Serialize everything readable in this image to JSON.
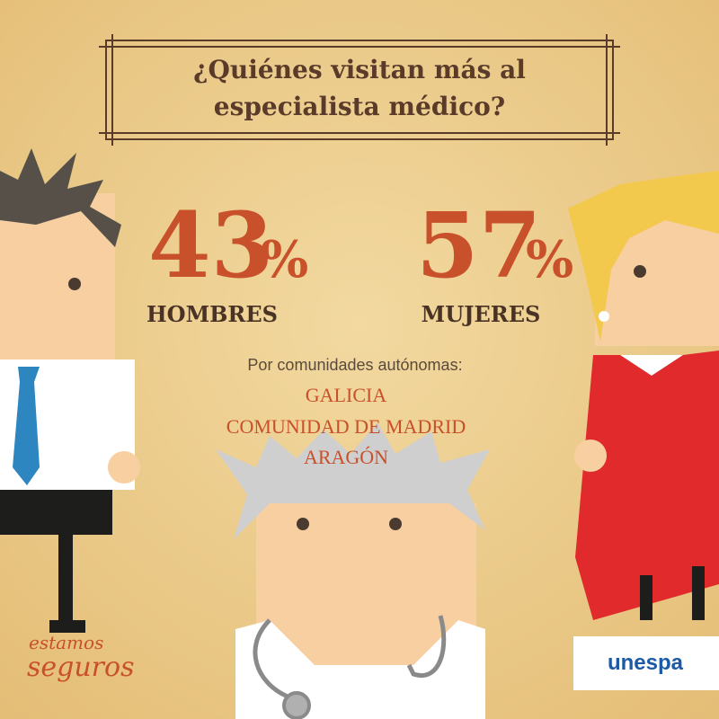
{
  "title_lines": [
    "¿Quiénes visitan más al",
    "especialista médico?"
  ],
  "stats": [
    {
      "number": "43",
      "unit": "%",
      "label": "HOMBRES"
    },
    {
      "number": "57",
      "unit": "%",
      "label": "MUJERES"
    }
  ],
  "regions_heading": "Por comunidades autónomas:",
  "regions": [
    "GALICIA",
    "COMUNIDAD DE MADRID",
    "ARAGÓN"
  ],
  "brand_left": [
    "estamos",
    "seguros"
  ],
  "brand_right": "unespa"
}
